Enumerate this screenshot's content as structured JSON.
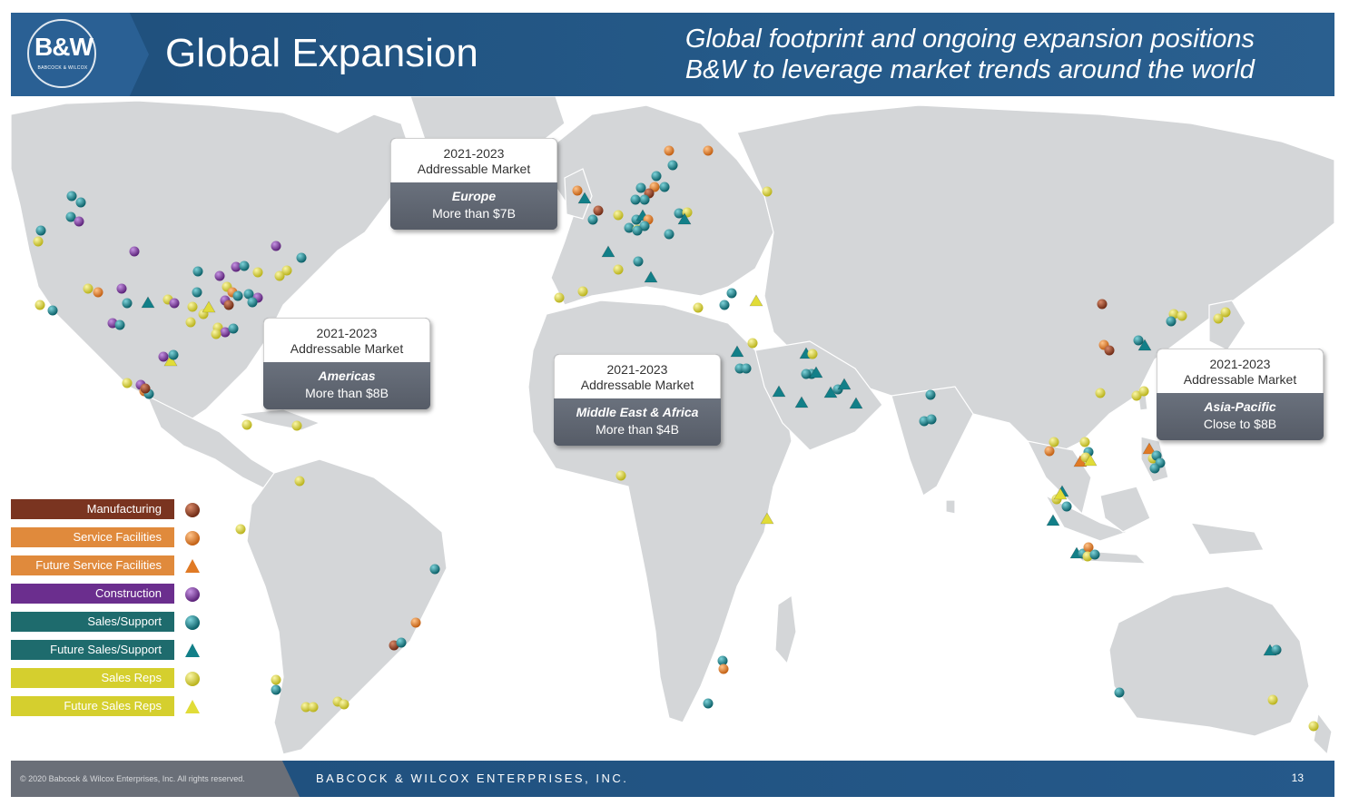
{
  "header": {
    "logo_text": "B&W",
    "logo_subtext": "BABCOCK & WILCOX",
    "title": "Global Expansion",
    "tagline_line1": "Global footprint and ongoing expansion positions",
    "tagline_line2": "B&W to leverage market trends around the world"
  },
  "callouts": {
    "europe": {
      "top_line1": "2021-2023",
      "top_line2": "Addressable Market",
      "region": "Europe",
      "value": "More than $7B"
    },
    "americas": {
      "top_line1": "2021-2023",
      "top_line2": "Addressable Market",
      "region": "Americas",
      "value": "More than $8B"
    },
    "mea": {
      "top_line1": "2021-2023",
      "top_line2": "Addressable Market",
      "region": "Middle East & Africa",
      "value": "More than $4B"
    },
    "apac": {
      "top_line1": "2021-2023",
      "top_line2": "Addressable Market",
      "region": "Asia-Pacific",
      "value": "Close to $8B"
    }
  },
  "legend": [
    {
      "label": "Manufacturing",
      "bar_color": "#7a3420",
      "symbol": "circle",
      "symbol_color": "#8a3a1f"
    },
    {
      "label": "Service Facilities",
      "bar_color": "#e08a3c",
      "symbol": "circle",
      "symbol_color": "#e07a25"
    },
    {
      "label": "Future Service Facilities",
      "bar_color": "#e08a3c",
      "symbol": "triangle",
      "symbol_color": "#e07a25"
    },
    {
      "label": "Construction",
      "bar_color": "#6b2e8e",
      "symbol": "circle",
      "symbol_color": "#7b35a3"
    },
    {
      "label": "Sales/Support",
      "bar_color": "#1e6b6d",
      "symbol": "circle",
      "symbol_color": "#127f88"
    },
    {
      "label": "Future Sales/Support",
      "bar_color": "#1e6b6d",
      "symbol": "triangle",
      "symbol_color": "#127f88"
    },
    {
      "label": "Sales Reps",
      "bar_color": "#d5cf2e",
      "symbol": "circle",
      "symbol_color": "#e1dc38"
    },
    {
      "label": "Future Sales Reps",
      "bar_color": "#d5cf2e",
      "symbol": "triangle",
      "symbol_color": "#e1dc38"
    }
  ],
  "footer": {
    "copyright": "© 2020 Babcock & Wilcox Enterprises, Inc. All rights reserved.",
    "company": "BABCOCK & WILCOX ENTERPRISES, INC.",
    "page_number": "13"
  },
  "colors": {
    "manufacturing": "#8a3a1f",
    "service": "#e07a25",
    "construction": "#7b35a3",
    "sales_support": "#127f88",
    "sales_reps": "#e1dc38",
    "land": "#d4d6d8",
    "header_blue": "#1f4f7c"
  }
}
